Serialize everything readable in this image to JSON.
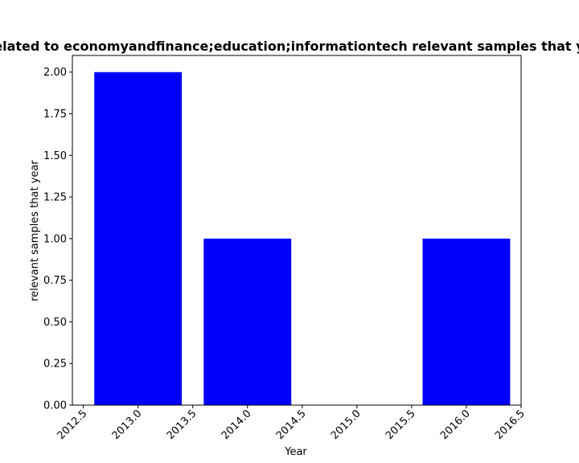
{
  "chart_data": {
    "type": "bar",
    "title": "Related to economyandfinance;education;informationtech relevant samples that year",
    "xlabel": "Year",
    "ylabel": "relevant samples that year",
    "x": [
      2013,
      2014,
      2015,
      2016
    ],
    "values": [
      2,
      1,
      0,
      1
    ],
    "bar_width": 0.8,
    "xlim": [
      2012.4,
      2016.5
    ],
    "ylim": [
      0,
      2.1
    ],
    "xticks": [
      2012.5,
      2013.0,
      2013.5,
      2014.0,
      2014.5,
      2015.0,
      2015.5,
      2016.0,
      2016.5
    ],
    "xtick_labels": [
      "2012.5",
      "2013.0",
      "2013.5",
      "2014.0",
      "2014.5",
      "2015.0",
      "2015.5",
      "2016.0",
      "2016.5"
    ],
    "yticks": [
      0,
      0.25,
      0.5,
      0.75,
      1.0,
      1.25,
      1.5,
      1.75,
      2.0
    ],
    "ytick_labels": [
      "0.00",
      "0.25",
      "0.50",
      "0.75",
      "1.00",
      "1.25",
      "1.50",
      "1.75",
      "2.00"
    ],
    "bar_color": "#0000ff",
    "grid": false,
    "legend": "none"
  }
}
